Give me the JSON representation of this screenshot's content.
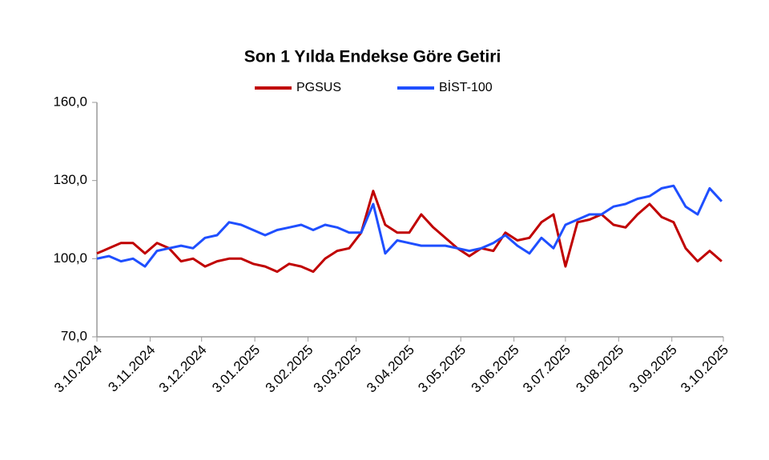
{
  "chart_data": {
    "type": "line",
    "title": "Son 1 Yılda Endekse Göre Getiri",
    "x": [
      "2024-10-03",
      "2024-10-10",
      "2024-10-17",
      "2024-10-24",
      "2024-10-31",
      "2024-11-07",
      "2024-11-14",
      "2024-11-21",
      "2024-11-28",
      "2024-12-05",
      "2024-12-12",
      "2024-12-19",
      "2024-12-26",
      "2025-01-02",
      "2025-01-09",
      "2025-01-16",
      "2025-01-23",
      "2025-01-30",
      "2025-02-06",
      "2025-02-13",
      "2025-02-20",
      "2025-02-27",
      "2025-03-06",
      "2025-03-13",
      "2025-03-20",
      "2025-03-27",
      "2025-04-03",
      "2025-04-10",
      "2025-04-17",
      "2025-04-24",
      "2025-05-01",
      "2025-05-08",
      "2025-05-15",
      "2025-05-22",
      "2025-05-29",
      "2025-06-05",
      "2025-06-12",
      "2025-06-19",
      "2025-06-26",
      "2025-07-03",
      "2025-07-10",
      "2025-07-17",
      "2025-07-24",
      "2025-07-31",
      "2025-08-07",
      "2025-08-14",
      "2025-08-21",
      "2025-08-28",
      "2025-09-04",
      "2025-09-11",
      "2025-09-18",
      "2025-09-25",
      "2025-10-02"
    ],
    "series": [
      {
        "name": "PGSUS",
        "color": "#c00000",
        "values": [
          102,
          104,
          106,
          106,
          102,
          106,
          104,
          99,
          100,
          97,
          99,
          100,
          100,
          98,
          97,
          95,
          98,
          97,
          95,
          100,
          103,
          104,
          110,
          126,
          113,
          110,
          110,
          117,
          112,
          108,
          104,
          101,
          104,
          103,
          110,
          107,
          108,
          114,
          117,
          97,
          114,
          115,
          117,
          113,
          112,
          117,
          121,
          116,
          114,
          104,
          99,
          103,
          99
        ]
      },
      {
        "name": "BİST-100",
        "color": "#1f4fff",
        "values": [
          100,
          101,
          99,
          100,
          97,
          103,
          104,
          105,
          104,
          108,
          109,
          114,
          113,
          111,
          109,
          111,
          112,
          113,
          111,
          113,
          112,
          110,
          110,
          121,
          102,
          107,
          106,
          105,
          105,
          105,
          104,
          103,
          104,
          106,
          109,
          105,
          102,
          108,
          104,
          113,
          115,
          117,
          117,
          120,
          121,
          123,
          124,
          127,
          128,
          120,
          117,
          127,
          122
        ]
      }
    ],
    "xlim": [
      "2024-10-03",
      "2025-10-03"
    ],
    "xticks": [
      {
        "value": "2024-10-03",
        "label": "3.10.2024"
      },
      {
        "value": "2024-11-03",
        "label": "3.11.2024"
      },
      {
        "value": "2024-12-03",
        "label": "3.12.2024"
      },
      {
        "value": "2025-01-03",
        "label": "3.01.2025"
      },
      {
        "value": "2025-02-03",
        "label": "3.02.2025"
      },
      {
        "value": "2025-03-03",
        "label": "3.03.2025"
      },
      {
        "value": "2025-04-03",
        "label": "3.04.2025"
      },
      {
        "value": "2025-05-03",
        "label": "3.05.2025"
      },
      {
        "value": "2025-06-03",
        "label": "3.06.2025"
      },
      {
        "value": "2025-07-03",
        "label": "3.07.2025"
      },
      {
        "value": "2025-08-03",
        "label": "3.08.2025"
      },
      {
        "value": "2025-09-03",
        "label": "3.09.2025"
      },
      {
        "value": "2025-10-03",
        "label": "3.10.2025"
      }
    ],
    "ylim": [
      70,
      160
    ],
    "yticks": [
      {
        "value": 70,
        "label": "70,0"
      },
      {
        "value": 100,
        "label": "100,0"
      },
      {
        "value": 130,
        "label": "130,0"
      },
      {
        "value": 160,
        "label": "160,0"
      }
    ],
    "legend": "top"
  }
}
